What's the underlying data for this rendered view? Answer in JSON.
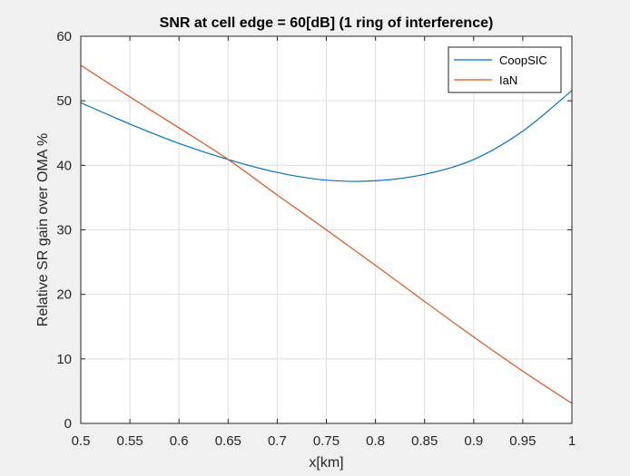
{
  "chart_data": {
    "type": "line",
    "title": "SNR at cell edge = 60[dB] (1 ring of interference)",
    "xlabel": "x[km]",
    "ylabel": "Relative SR gain over OMA %",
    "xlim": [
      0.5,
      1.0
    ],
    "ylim": [
      0,
      60
    ],
    "xticks": [
      0.5,
      0.55,
      0.6,
      0.65,
      0.7,
      0.75,
      0.8,
      0.85,
      0.9,
      0.95,
      1
    ],
    "xtick_labels": [
      "0.5",
      "0.55",
      "0.6",
      "0.65",
      "0.7",
      "0.75",
      "0.8",
      "0.85",
      "0.9",
      "0.95",
      "1"
    ],
    "yticks": [
      0,
      10,
      20,
      30,
      40,
      50,
      60
    ],
    "ytick_labels": [
      "0",
      "10",
      "20",
      "30",
      "40",
      "50",
      "60"
    ],
    "grid": true,
    "legend_position": "top-right",
    "series": [
      {
        "name": "CoopSIC",
        "color": "#0072bd",
        "x": [
          0.5,
          0.55,
          0.6,
          0.65,
          0.7,
          0.75,
          0.8,
          0.85,
          0.9,
          0.95,
          1.0
        ],
        "y": [
          49.7,
          46.4,
          43.4,
          40.9,
          38.9,
          37.7,
          37.6,
          38.6,
          40.9,
          45.3,
          51.6
        ]
      },
      {
        "name": "IaN",
        "color": "#d95319",
        "x": [
          0.5,
          0.55,
          0.6,
          0.65,
          0.7,
          0.75,
          0.8,
          0.85,
          0.9,
          0.95,
          1.0
        ],
        "y": [
          55.5,
          50.6,
          45.8,
          40.9,
          35.4,
          30.0,
          24.5,
          18.9,
          13.4,
          8.1,
          3.1
        ]
      }
    ]
  }
}
